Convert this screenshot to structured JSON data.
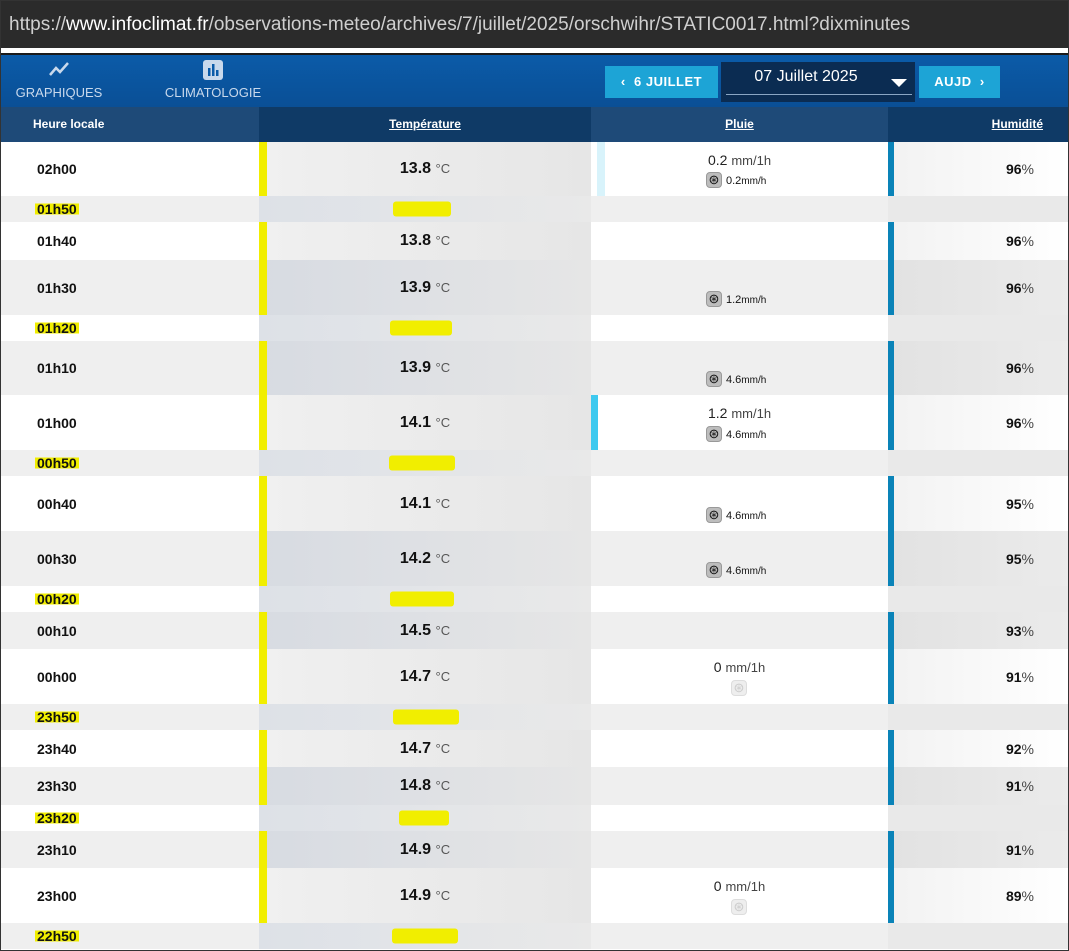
{
  "browser": {
    "url_prefix": "https://",
    "url_host": "www.infoclimat.fr",
    "url_path": "/observations-meteo/archives/7/juillet/2025/orschwihr/STATIC0017.html?dixminutes"
  },
  "nav": {
    "graphiques_label": "GRAPHIQUES",
    "graphiques_icon": "line-chart-icon",
    "climatologie_label": "CLIMATOLOGIE",
    "climatologie_icon": "bar-chart-icon",
    "prev_label": "6 JUILLET",
    "date_value": "07 Juillet 2025",
    "next_label": "AUJD"
  },
  "table": {
    "headers": {
      "hour": "Heure locale",
      "temp": "Température",
      "rain": "Pluie",
      "humidity": "Humidité"
    },
    "temp_unit": "°C",
    "humidity_unit": "%",
    "rain_unit": "mm/1h",
    "rate_unit": "mm/h",
    "rows": [
      {
        "hour": "02h00",
        "temp": "13.8",
        "humidity": "96",
        "rain": "0.2",
        "rate": "0.2"
      },
      {
        "hour": "01h50",
        "highlighted": true
      },
      {
        "hour": "01h40",
        "temp": "13.8",
        "humidity": "96"
      },
      {
        "hour": "01h30",
        "temp": "13.9",
        "humidity": "96",
        "rate": "1.2"
      },
      {
        "hour": "01h20",
        "highlighted": true
      },
      {
        "hour": "01h10",
        "temp": "13.9",
        "humidity": "96",
        "rate": "4.6"
      },
      {
        "hour": "01h00",
        "temp": "14.1",
        "humidity": "96",
        "rain": "1.2",
        "rate": "4.6"
      },
      {
        "hour": "00h50",
        "highlighted": true
      },
      {
        "hour": "00h40",
        "temp": "14.1",
        "humidity": "95",
        "rate": "4.6"
      },
      {
        "hour": "00h30",
        "temp": "14.2",
        "humidity": "95",
        "rate": "4.6"
      },
      {
        "hour": "00h20",
        "highlighted": true
      },
      {
        "hour": "00h10",
        "temp": "14.5",
        "humidity": "93"
      },
      {
        "hour": "00h00",
        "temp": "14.7",
        "humidity": "91",
        "rain": "0"
      },
      {
        "hour": "23h50",
        "highlighted": true
      },
      {
        "hour": "23h40",
        "temp": "14.7",
        "humidity": "92"
      },
      {
        "hour": "23h30",
        "temp": "14.8",
        "humidity": "91"
      },
      {
        "hour": "23h20",
        "highlighted": true
      },
      {
        "hour": "23h10",
        "temp": "14.9",
        "humidity": "91"
      },
      {
        "hour": "23h00",
        "temp": "14.9",
        "humidity": "89",
        "rain": "0"
      },
      {
        "hour": "22h50",
        "highlighted": true
      }
    ]
  },
  "colors": {
    "nav_bg": "#0b5ba8",
    "button": "#1da4d6",
    "highlight": "#f1ee00",
    "humidity_bar": "#0a83b8",
    "rain_bar_light": "#d8f3fb",
    "rain_bar_strong": "#3ec9ef"
  }
}
